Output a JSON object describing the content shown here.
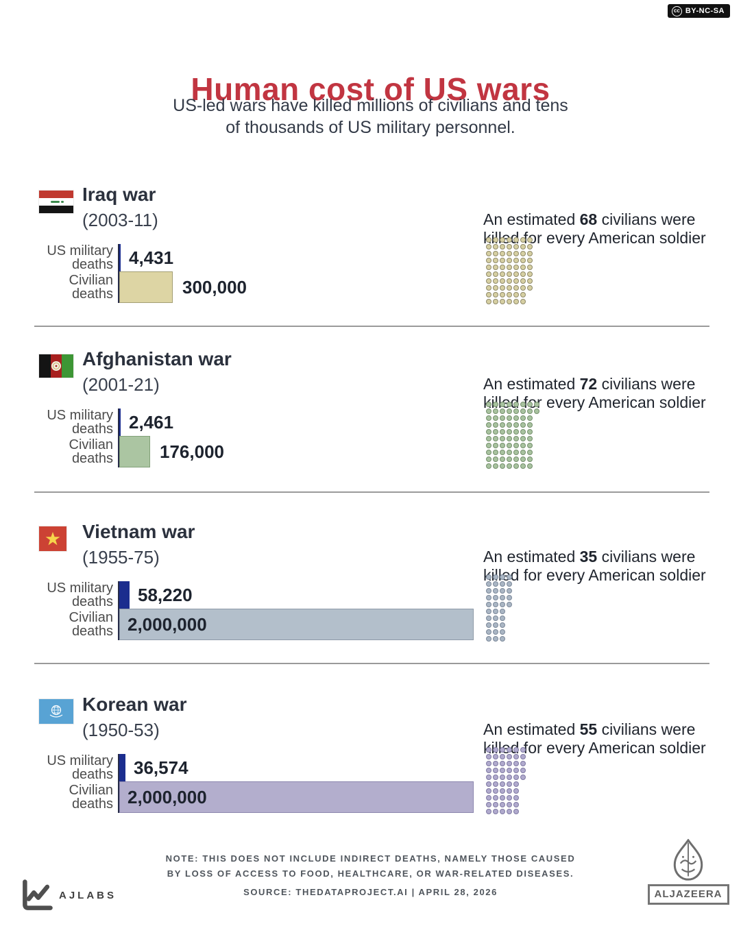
{
  "badge": {
    "label": "BY-NC-SA",
    "icon": "cc"
  },
  "header": {
    "title": "Human cost of US wars",
    "subtitle_line1": "US-led wars have killed millions of civilians and tens",
    "subtitle_line2": "of thousands of US military personnel."
  },
  "strings": {
    "military_label": "US military deaths",
    "civilian_label": "Civilian deaths",
    "estimate_prefix": "An estimated",
    "estimate_suffix": "civilians were killed for every American soldier"
  },
  "colors": {
    "title_red": "#c13541",
    "military_bar": "#1b2d8e",
    "axis": "#272c49"
  },
  "wars": [
    {
      "name": "Iraq war",
      "dates": "(2003-11)",
      "flag": "iraq",
      "military_deaths": 4431,
      "military_deaths_label": "4,431",
      "civilian_deaths": 300000,
      "civilian_deaths_label": "300,000",
      "civilians_per_soldier": 68,
      "ratio_label": "68",
      "civilian_label_inside": false,
      "civilian_fill": "#ddd5a4",
      "civilian_border": "#a39e74",
      "dot_fill": "#d6cfa2",
      "dot_stroke": "#8f8a6a"
    },
    {
      "name": "Afghanistan war",
      "dates": "(2001-21)",
      "flag": "afghanistan",
      "military_deaths": 2461,
      "military_deaths_label": "2,461",
      "civilian_deaths": 176000,
      "civilian_deaths_label": "176,000",
      "civilians_per_soldier": 72,
      "ratio_label": "72",
      "civilian_label_inside": false,
      "civilian_fill": "#abc5a2",
      "civilian_border": "#81a078",
      "dot_fill": "#a8c29f",
      "dot_stroke": "#75906d"
    },
    {
      "name": "Vietnam war",
      "dates": "(1955-75)",
      "flag": "vietnam",
      "military_deaths": 58220,
      "military_deaths_label": "58,220",
      "civilian_deaths": 2000000,
      "civilian_deaths_label": "2,000,000",
      "civilians_per_soldier": 35,
      "ratio_label": "35",
      "civilian_label_inside": true,
      "civilian_fill": "#b3bfcb",
      "civilian_border": "#8e9aa8",
      "dot_fill": "#aab6c4",
      "dot_stroke": "#7b8899"
    },
    {
      "name": "Korean war",
      "dates": "(1950-53)",
      "flag": "un",
      "military_deaths": 36574,
      "military_deaths_label": "36,574",
      "civilian_deaths": 2000000,
      "civilian_deaths_label": "2,000,000",
      "civilians_per_soldier": 55,
      "ratio_label": "55",
      "civilian_label_inside": true,
      "civilian_fill": "#b3aecd",
      "civilian_border": "#8c86ae",
      "dot_fill": "#b0aacd",
      "dot_stroke": "#7f79a3"
    }
  ],
  "footer": {
    "note_line1": "NOTE:  THIS DOES NOT INCLUDE INDIRECT DEATHS, NAMELY THOSE CAUSED",
    "note_line2": "BY LOSS OF ACCESS TO FOOD, HEALTHCARE, OR WAR-RELATED DISEASES.",
    "source": "SOURCE:  THEDATAPROJECT.AI  |  APRIL 28, 2026",
    "ajlabs": "AJLABS",
    "aljazeera": "ALJAZEERA"
  },
  "chart_data": {
    "type": "bar",
    "orientation": "horizontal",
    "title": "Human cost of US wars",
    "categories": [
      "Iraq war (2003-11)",
      "Afghanistan war (2001-21)",
      "Vietnam war (1955-75)",
      "Korean war (1950-53)"
    ],
    "series": [
      {
        "name": "US military deaths",
        "values": [
          4431,
          2461,
          58220,
          36574
        ]
      },
      {
        "name": "Civilian deaths",
        "values": [
          300000,
          176000,
          2000000,
          2000000
        ]
      }
    ],
    "civilians_killed_per_american_soldier": [
      68,
      72,
      35,
      55
    ],
    "xlim": [
      0,
      2000000
    ],
    "grid": false,
    "legend_position": "row-labels-left"
  }
}
